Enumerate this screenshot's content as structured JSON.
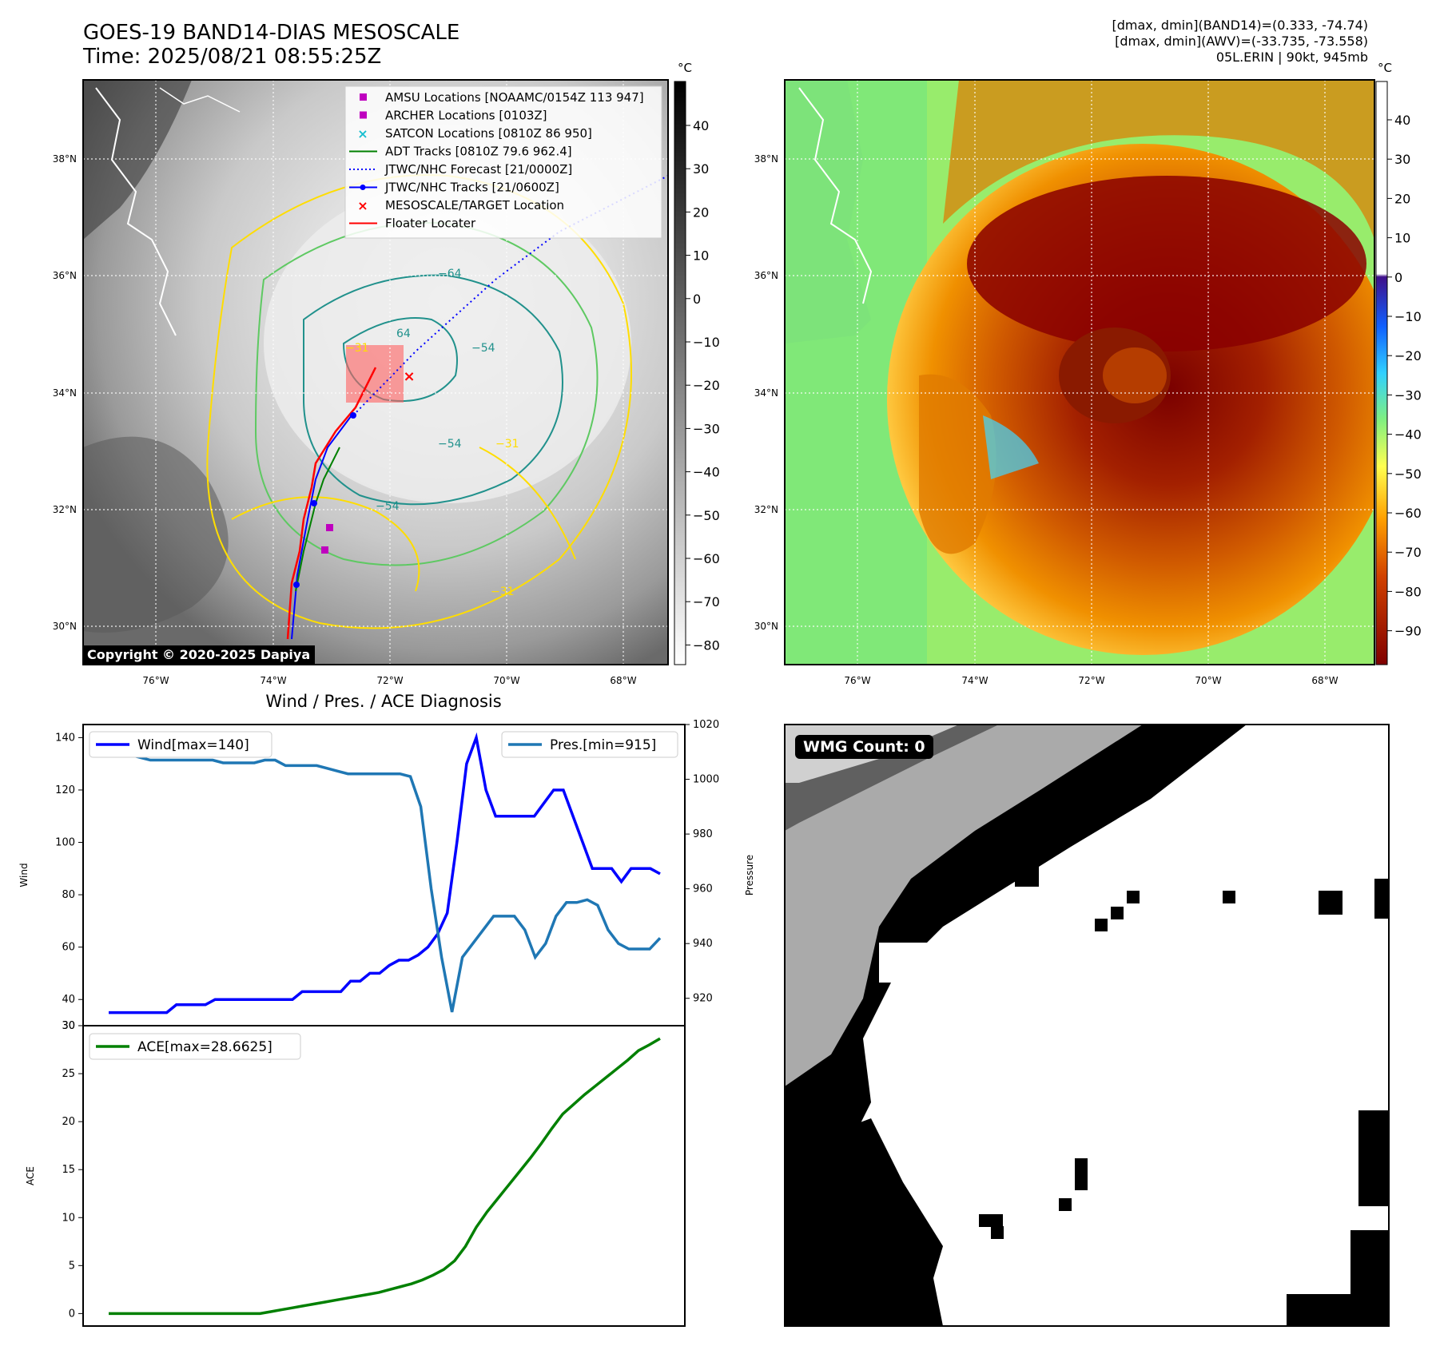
{
  "header": {
    "title_line1": "GOES-19 BAND14-DIAS MESOSCALE",
    "title_line2": "Time: 2025/08/21 08:55:25Z",
    "info_line1": "[dmax, dmin](BAND14)=(0.333, -74.74)",
    "info_line2": "[dmax, dmin](AWV)=(-33.735, -73.558)",
    "info_line3": "05L.ERIN | 90kt, 945mb",
    "unit_left": "°C",
    "unit_right": "°C"
  },
  "map": {
    "lat_labels": [
      "38°N",
      "36°N",
      "34°N",
      "32°N",
      "30°N"
    ],
    "lon_labels": [
      "76°W",
      "74°W",
      "72°W",
      "70°W",
      "68°W"
    ],
    "contour_labels": [
      "−64",
      "64",
      "−31",
      "−54",
      "−54",
      "−54",
      "−31",
      "−31"
    ],
    "copyright": "Copyright © 2020-2025 Dapiya",
    "legend": [
      {
        "label": "AMSU Locations [NOAAMC/0154Z 113 947]",
        "marker": "square",
        "color": "#bf00bf"
      },
      {
        "label": "ARCHER Locations [0103Z]",
        "marker": "square",
        "color": "#bf00bf"
      },
      {
        "label": "SATCON Locations [0810Z 86 950]",
        "marker": "x",
        "color": "#17becf"
      },
      {
        "label": "ADT Tracks [0810Z 79.6 962.4]",
        "marker": "line",
        "color": "#008000"
      },
      {
        "label": "JTWC/NHC Forecast [21/0000Z]",
        "marker": "dotted",
        "color": "#0000ff"
      },
      {
        "label": "JTWC/NHC Tracks [21/0600Z]",
        "marker": "line-dot",
        "color": "#0000ff"
      },
      {
        "label": "MESOSCALE/TARGET Location",
        "marker": "x",
        "color": "#ff0000"
      },
      {
        "label": "Floater Locater",
        "marker": "line",
        "color": "#ff0000"
      }
    ],
    "colorbar_left_ticks": [
      "40",
      "30",
      "20",
      "10",
      "0",
      "−10",
      "−20",
      "−30",
      "−40",
      "−50",
      "−60",
      "−70",
      "−80"
    ],
    "colorbar_right_ticks": [
      "40",
      "30",
      "20",
      "10",
      "0",
      "−10",
      "−20",
      "−30",
      "−40",
      "−50",
      "−60",
      "−70",
      "−80",
      "−90"
    ]
  },
  "diagnosis": {
    "title": "Wind / Pres. / ACE Diagnosis",
    "wmg_label": "WMG Count: 0"
  },
  "chart_data": [
    {
      "type": "line",
      "title": "",
      "ylabel": "Wind",
      "y2label": "Pressure",
      "ylim": [
        30,
        145
      ],
      "y2lim": [
        910,
        1020
      ],
      "yticks": [
        30,
        40,
        60,
        80,
        100,
        120,
        140
      ],
      "y2ticks": [
        920,
        940,
        960,
        980,
        1000,
        1020
      ],
      "legend_placement": [
        "top-left",
        "top-right"
      ],
      "series": [
        {
          "name": "Wind[max=140]",
          "color": "#0000ff",
          "axis": "left",
          "values": [
            35,
            35,
            35,
            35,
            35,
            35,
            35,
            38,
            38,
            38,
            38,
            40,
            40,
            40,
            40,
            40,
            40,
            40,
            40,
            40,
            43,
            43,
            43,
            43,
            43,
            47,
            47,
            50,
            50,
            53,
            55,
            55,
            57,
            60,
            65,
            73,
            100,
            130,
            140,
            120,
            110,
            110,
            110,
            110,
            110,
            115,
            120,
            120,
            110,
            100,
            90,
            90,
            90,
            85,
            90,
            90,
            90,
            88
          ]
        },
        {
          "name": "Pres.[min=915]",
          "color": "#1f77b4",
          "axis": "right",
          "values": [
            1014,
            1014,
            1009,
            1008,
            1007,
            1007,
            1007,
            1007,
            1007,
            1007,
            1007,
            1006,
            1006,
            1006,
            1006,
            1007,
            1007,
            1005,
            1005,
            1005,
            1005,
            1004,
            1003,
            1002,
            1002,
            1002,
            1002,
            1002,
            1002,
            1001,
            990,
            960,
            935,
            915,
            935,
            940,
            945,
            950,
            950,
            950,
            945,
            935,
            940,
            950,
            955,
            955,
            956,
            954,
            945,
            940,
            938,
            938,
            938,
            942
          ]
        }
      ]
    },
    {
      "type": "line",
      "title": "",
      "ylabel": "ACE",
      "ylim": [
        -1.3,
        30
      ],
      "yticks": [
        0,
        5,
        10,
        15,
        20,
        25,
        30
      ],
      "legend_placement": "top-left",
      "series": [
        {
          "name": "ACE[max=28.6625]",
          "color": "#008000",
          "values": [
            0,
            0,
            0,
            0,
            0,
            0,
            0,
            0,
            0,
            0,
            0,
            0,
            0,
            0,
            0,
            0.2,
            0.4,
            0.6,
            0.8,
            1.0,
            1.2,
            1.4,
            1.6,
            1.8,
            2.0,
            2.2,
            2.5,
            2.8,
            3.1,
            3.5,
            4.0,
            4.6,
            5.5,
            7.0,
            9.0,
            10.6,
            12.0,
            13.4,
            14.8,
            16.2,
            17.7,
            19.3,
            20.8,
            21.8,
            22.8,
            23.7,
            24.6,
            25.5,
            26.4,
            27.4,
            28.0,
            28.66
          ]
        }
      ]
    }
  ]
}
